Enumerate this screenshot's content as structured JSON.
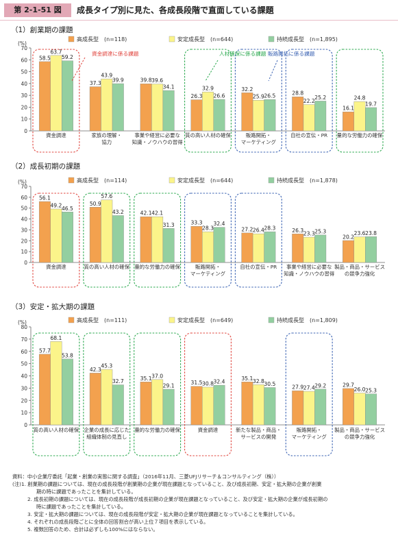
{
  "figure": {
    "number": "第 2-1-51 図",
    "title": "成長タイプ別に見た、各成長段階で直面している課題"
  },
  "colors": {
    "high": "#f3a14e",
    "stable": "#fbf48a",
    "sustained": "#93cfa0",
    "red_box": "#e0443d",
    "green_box": "#2aa84e",
    "blue_box": "#3b63b3"
  },
  "legend": [
    "高成長型",
    "安定成長型",
    "持続成長型"
  ],
  "chart_data": [
    {
      "type": "bar",
      "title": "（1）創業期の課題",
      "yunit": "(%)",
      "ylim": [
        0,
        70
      ],
      "yticks": [
        0,
        10,
        20,
        30,
        40,
        50,
        60,
        70
      ],
      "series_labels": [
        "高成長型　(n=118)",
        "安定成長型　(n=644)",
        "持続成長型　(n=1,895)"
      ],
      "categories": [
        [
          "資金調達"
        ],
        [
          "家族の理解・",
          "協力"
        ],
        [
          "事業や経営に必要な",
          "知識・ノウハウの習得"
        ],
        [
          "質の高い人材の確保"
        ],
        [
          "販路開拓・",
          "マーケティング"
        ],
        [
          "自社の宣伝・PR"
        ],
        [
          "量的な労働力の確保"
        ]
      ],
      "series": [
        {
          "name": "高成長型",
          "values": [
            58.5,
            37.3,
            39.8,
            26.3,
            32.2,
            28.8,
            16.1
          ]
        },
        {
          "name": "安定成長型",
          "values": [
            63.7,
            43.9,
            39.6,
            32.9,
            25.9,
            22.2,
            24.8
          ]
        },
        {
          "name": "持続成長型",
          "values": [
            59.2,
            39.9,
            34.1,
            26.6,
            26.5,
            25.2,
            19.7
          ]
        }
      ],
      "boxes": [
        {
          "cat": 0,
          "color": "red_box"
        },
        {
          "cat": 3,
          "color": "green_box"
        },
        {
          "cat": 4,
          "color": "blue_box"
        },
        {
          "cat": 5,
          "color": "blue_box"
        },
        {
          "cat": 6,
          "color": "green_box"
        }
      ],
      "callouts": [
        {
          "text": "資金調達に係る課題",
          "color": "red_box"
        },
        {
          "text": "人材確保に係る課題",
          "color": "green_box"
        },
        {
          "text": "販路開拓に係る課題",
          "color": "blue_box"
        }
      ]
    },
    {
      "type": "bar",
      "title": "（2）成長初期の課題",
      "yunit": "(%)",
      "ylim": [
        0,
        70
      ],
      "yticks": [
        0,
        10,
        20,
        30,
        40,
        50,
        60,
        70
      ],
      "series_labels": [
        "高成長型　(n=114)",
        "安定成長型　(n=644)",
        "持続成長型　(n=1,878)"
      ],
      "categories": [
        [
          "資金調達"
        ],
        [
          "質の高い人材の確保"
        ],
        [
          "量的な労働力の確保"
        ],
        [
          "販路開拓・",
          "マーケティング"
        ],
        [
          "自社の宣伝・PR"
        ],
        [
          "事業や経営に必要な",
          "知識・ノウハウの習得"
        ],
        [
          "製品・商品・サービス",
          "の競争力強化"
        ]
      ],
      "series": [
        {
          "name": "高成長型",
          "values": [
            56.1,
            50.9,
            42.1,
            33.3,
            27.2,
            26.3,
            20.2
          ]
        },
        {
          "name": "安定成長型",
          "values": [
            49.2,
            57.6,
            42.1,
            28.3,
            26.4,
            23.3,
            23.6
          ]
        },
        {
          "name": "持続成長型",
          "values": [
            46.5,
            43.2,
            31.3,
            32.4,
            28.3,
            25.3,
            23.8
          ]
        }
      ],
      "boxes": [
        {
          "cat": 0,
          "color": "red_box"
        },
        {
          "cat": 1,
          "color": "green_box"
        },
        {
          "cat": 2,
          "color": "green_box"
        },
        {
          "cat": 3,
          "color": "blue_box"
        },
        {
          "cat": 4,
          "color": "blue_box"
        }
      ]
    },
    {
      "type": "bar",
      "title": "（3）安定・拡大期の課題",
      "yunit": "(%)",
      "ylim": [
        0,
        80
      ],
      "yticks": [
        0,
        10,
        20,
        30,
        40,
        50,
        60,
        70,
        80
      ],
      "series_labels": [
        "高成長型　(n=111)",
        "安定成長型　(n=649)",
        "持続成長型　(n=1,809)"
      ],
      "categories": [
        [
          "質の高い人材の確保"
        ],
        [
          "企業の成長に応じた",
          "組織体制の見直し"
        ],
        [
          "量的な労働力の確保"
        ],
        [
          "資金調達"
        ],
        [
          "新たな製品・商品・",
          "サービスの開発"
        ],
        [
          "販路開拓・",
          "マーケティング"
        ],
        [
          "製品・商品・サービス",
          "の競争力強化"
        ]
      ],
      "series": [
        {
          "name": "高成長型",
          "values": [
            57.7,
            42.3,
            35.1,
            31.5,
            35.1,
            27.9,
            29.7
          ]
        },
        {
          "name": "安定成長型",
          "values": [
            68.1,
            45.3,
            37.0,
            30.8,
            32.8,
            27.4,
            26.0
          ]
        },
        {
          "name": "持続成長型",
          "values": [
            53.8,
            32.7,
            29.1,
            32.4,
            30.5,
            29.2,
            25.3
          ]
        }
      ],
      "boxes": [
        {
          "cat": 0,
          "color": "green_box"
        },
        {
          "cat": 1,
          "color": "green_box"
        },
        {
          "cat": 2,
          "color": "green_box"
        },
        {
          "cat": 3,
          "color": "red_box"
        },
        {
          "cat": 5,
          "color": "blue_box"
        }
      ]
    }
  ],
  "notes": [
    "資料：中小企業庁委託「起業・創業の実態に関する調査」（2016年11月、三菱UFJリサーチ＆コンサルティング（株））",
    "(注)1. 創業期の課題については、現在の成長段階が創業期の企業が現在課題となっていること、及び成長初期、安定・拡大期の企業が創業",
    "期の時に課題であったことを集計している。",
    "2. 成長初期の課題については、現在の成長段階が成長初期の企業が現在課題となっていること、及び安定・拡大期の企業が成長初期の",
    "時に課題であったことを集計している。",
    "3. 安定・拡大期の課題については、現在の成長段階が安定・拡大期の企業が現在課題となっていることを集計している。",
    "4. それぞれの成長段階ごとに全体の回答割合が高い上位７項目を表示している。",
    "5. 複数回答のため、合計は必ずしも100%にはならない。"
  ]
}
